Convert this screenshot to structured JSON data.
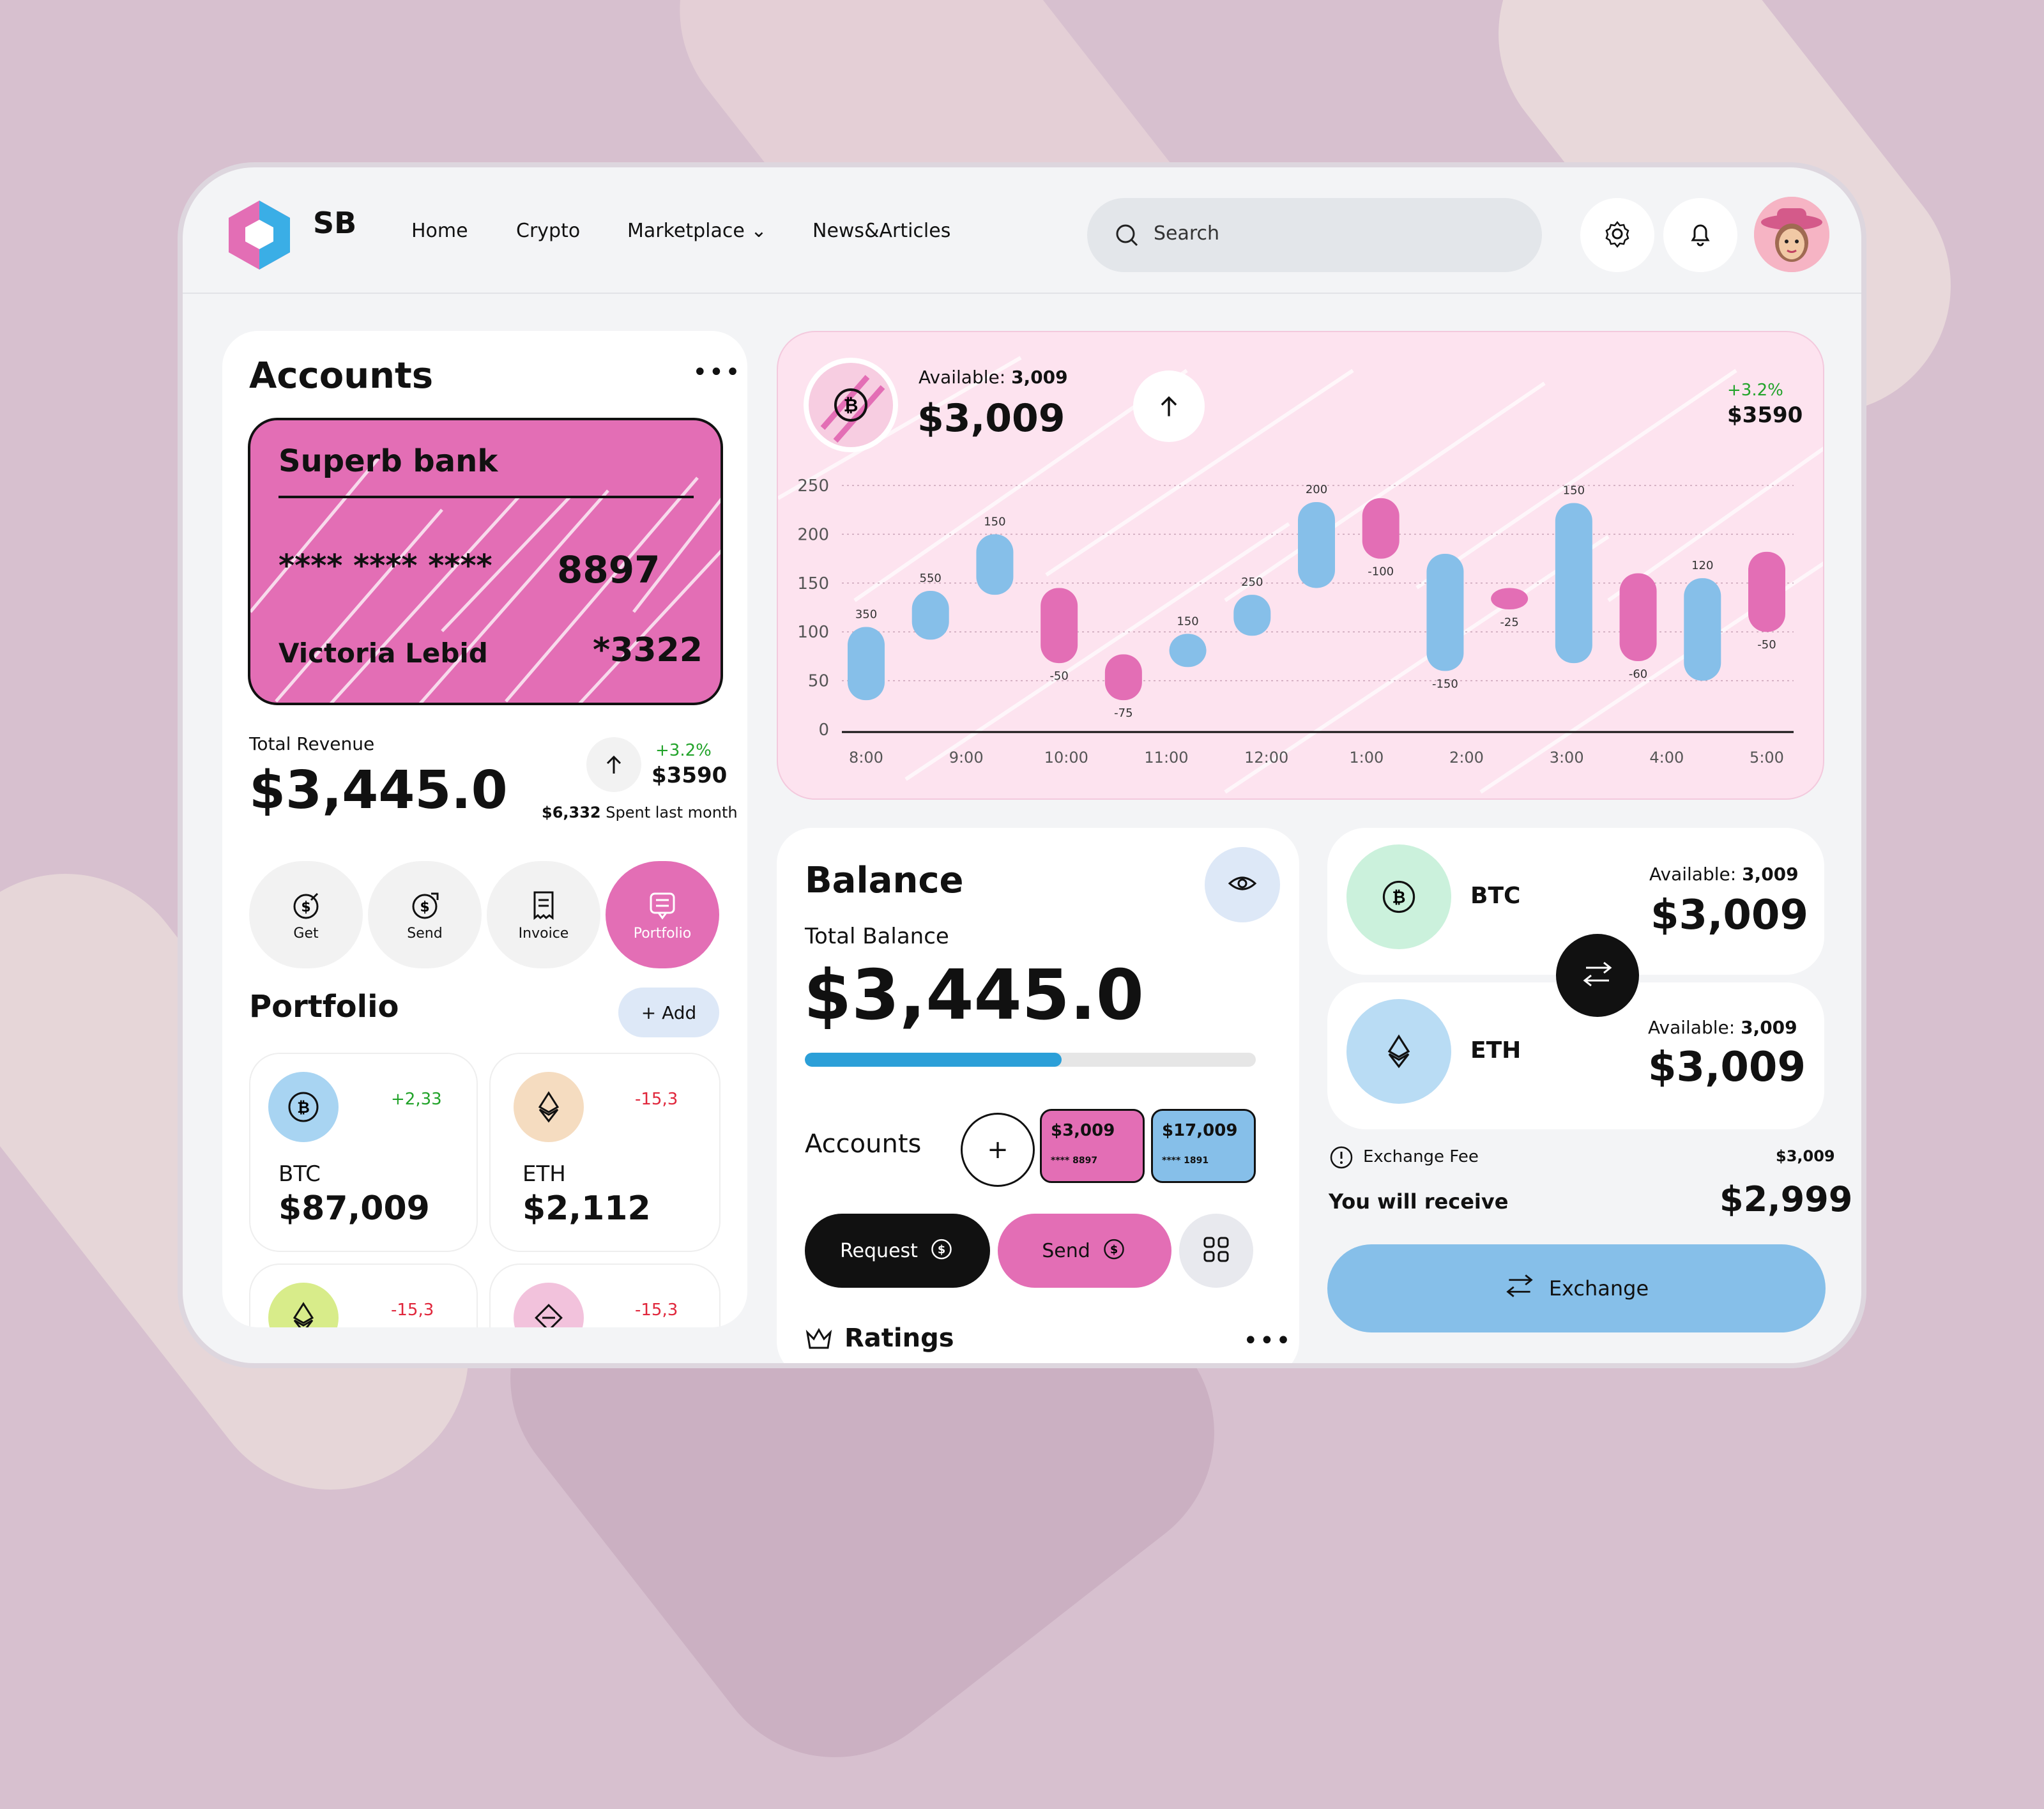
{
  "header": {
    "brand": "SB",
    "nav": [
      "Home",
      "Crypto",
      "Marketplace",
      "News&Articles"
    ],
    "search_placeholder": "Search"
  },
  "accounts": {
    "title": "Accounts",
    "bank_name": "Superb bank",
    "card_mask": "**** **** ****",
    "card_last4": "8897",
    "holder": "Victoria Lebid",
    "cvv_hint": "*3322",
    "total_revenue_label": "Total Revenue",
    "total_revenue": "$3,445.0",
    "change_pct": "+3.2%",
    "change_value": "$3590",
    "spent_amount": "$6,332",
    "spent_label": "Spent last month",
    "actions": [
      "Get",
      "Send",
      "Invoice",
      "Portfolio"
    ]
  },
  "portfolio": {
    "title": "Portfolio",
    "add_label": "+ Add",
    "items": [
      {
        "name": "BTC",
        "value": "$87,009",
        "change": "+2,33"
      },
      {
        "name": "ETH",
        "value": "$2,112",
        "change": "-15,3"
      },
      {
        "name": "",
        "value": "",
        "change": "-15,3"
      },
      {
        "name": "",
        "value": "",
        "change": "-15,3"
      }
    ]
  },
  "chart_header": {
    "available_label": "Available:",
    "available_value": "3,009",
    "amount": "$3,009",
    "change_pct": "+3.2%",
    "change_value": "$3590"
  },
  "chart_data": {
    "type": "bar",
    "xlabel": "",
    "ylabel": "",
    "ylim": [
      0,
      250
    ],
    "yticks": [
      0,
      50,
      100,
      150,
      200,
      250
    ],
    "xticks": [
      "8:00",
      "9:00",
      "10:00",
      "11:00",
      "12:00",
      "1:00",
      "2:00",
      "3:00",
      "4:00",
      "5:00"
    ],
    "bars": [
      {
        "x": 8.0,
        "low": 30,
        "high": 105,
        "label": "350",
        "color": "blue"
      },
      {
        "x": 8.5,
        "low": 92,
        "high": 142,
        "label": "550",
        "color": "blue"
      },
      {
        "x": 9.0,
        "low": 138,
        "high": 200,
        "label": "150",
        "color": "blue"
      },
      {
        "x": 9.5,
        "low": 68,
        "high": 145,
        "label": "-50",
        "color": "pink"
      },
      {
        "x": 10.0,
        "low": 30,
        "high": 77,
        "label": "-75",
        "color": "pink"
      },
      {
        "x": 10.5,
        "low": 64,
        "high": 98,
        "label": "150",
        "color": "blue"
      },
      {
        "x": 11.0,
        "low": 96,
        "high": 138,
        "label": "250",
        "color": "blue"
      },
      {
        "x": 11.5,
        "low": 145,
        "high": 233,
        "label": "200",
        "color": "blue"
      },
      {
        "x": 12.0,
        "low": 175,
        "high": 237,
        "label": "-100",
        "color": "pink"
      },
      {
        "x": 12.5,
        "low": 60,
        "high": 180,
        "label": "-150",
        "color": "blue"
      },
      {
        "x": 13.0,
        "low": 123,
        "high": 145,
        "label": "-25",
        "color": "pink"
      },
      {
        "x": 13.5,
        "low": 68,
        "high": 232,
        "label": "150",
        "color": "blue"
      },
      {
        "x": 14.0,
        "low": 70,
        "high": 160,
        "label": "-60",
        "color": "pink"
      },
      {
        "x": 14.5,
        "low": 50,
        "high": 155,
        "label": "120",
        "color": "blue"
      },
      {
        "x": 15.0,
        "low": 100,
        "high": 182,
        "label": "-50",
        "color": "pink"
      }
    ],
    "colors": {
      "blue": "#86bfe9",
      "pink": "#e36eb5"
    }
  },
  "balance": {
    "title": "Balance",
    "total_label": "Total Balance",
    "total": "$3,445.0",
    "progress": 0.57,
    "accounts_label": "Accounts",
    "mini_cards": [
      {
        "amount": "$3,009",
        "mask": "**** 8897"
      },
      {
        "amount": "$17,009",
        "mask": "**** 1891"
      }
    ],
    "request_label": "Request",
    "send_label": "Send",
    "ratings_label": "Ratings"
  },
  "exchange": {
    "from": {
      "name": "BTC",
      "available_label": "Available:",
      "available": "3,009",
      "amount": "$3,009"
    },
    "to": {
      "name": "ETH",
      "available_label": "Available:",
      "available": "3,009",
      "amount": "$3,009"
    },
    "fee_label": "Exchange Fee",
    "fee_value": "$3,009",
    "receive_label": "You will receive",
    "receive_value": "$2,999",
    "button_label": "Exchange"
  },
  "colors": {
    "pink": "#e36eb5",
    "blue": "#86bfe9",
    "accent_blue": "#2b9fd8",
    "green": "#22a32a",
    "red": "#e0263b"
  }
}
